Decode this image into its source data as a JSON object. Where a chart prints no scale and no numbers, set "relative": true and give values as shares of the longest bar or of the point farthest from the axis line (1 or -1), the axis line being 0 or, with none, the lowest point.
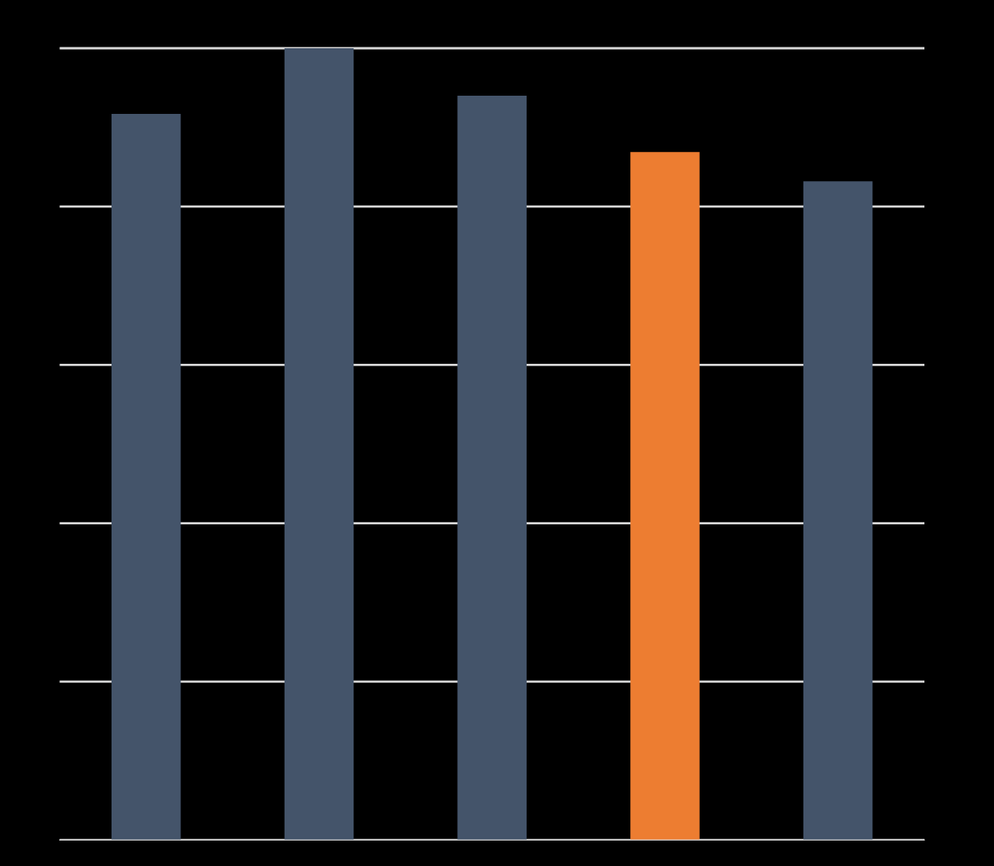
{
  "chart_data": {
    "type": "bar",
    "relative": true,
    "grid": "y",
    "categories": [
      null,
      null,
      null,
      null,
      null
    ],
    "values": [
      0.917,
      1,
      0.94,
      0.869,
      0.832
    ],
    "colors": [
      "#44546a",
      "#44546a",
      "#44546a",
      "#ed7d31",
      "#44546a"
    ]
  }
}
